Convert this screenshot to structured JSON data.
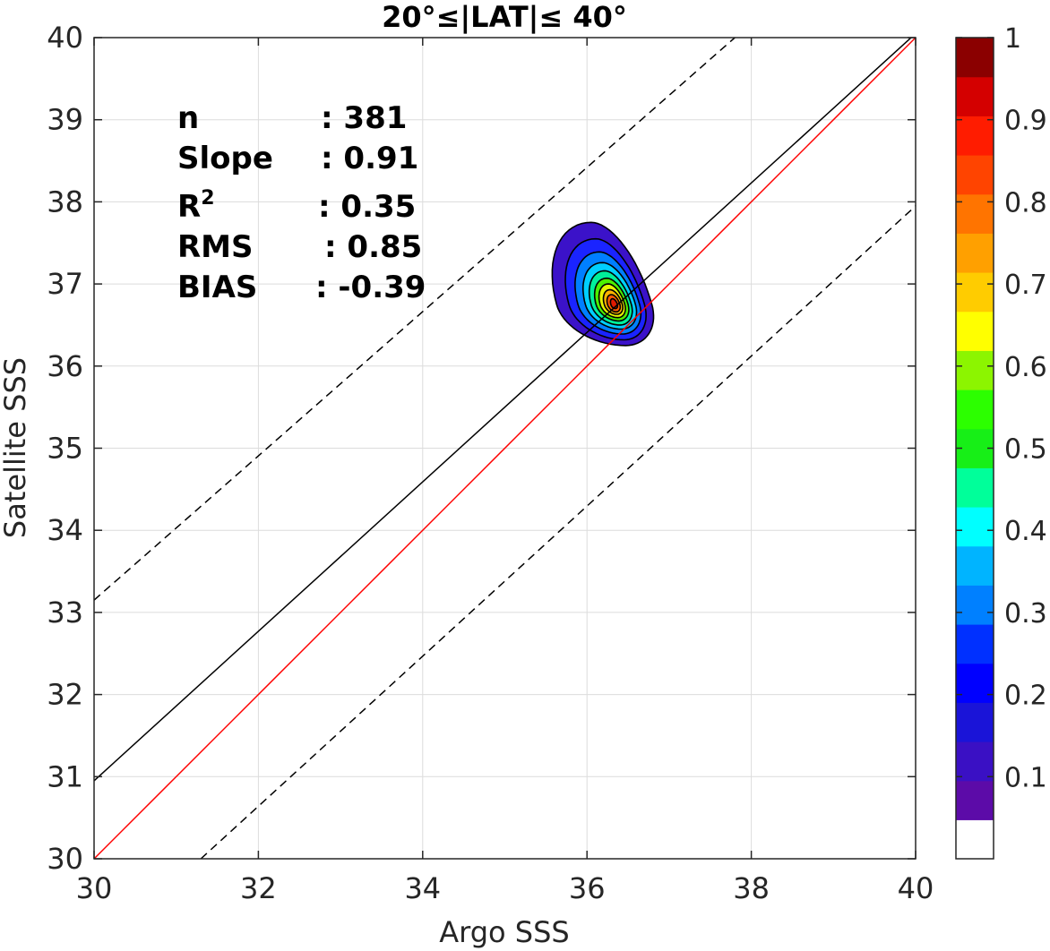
{
  "chart_data": {
    "type": "contour",
    "title": "20°≤|LAT|≤ 40°",
    "xlabel": "Argo SSS",
    "ylabel": "Satellite SSS",
    "xlim": [
      30,
      40
    ],
    "ylim": [
      30,
      40
    ],
    "xticks": [
      "30",
      "32",
      "34",
      "36",
      "38",
      "40"
    ],
    "yticks": [
      "30",
      "31",
      "32",
      "33",
      "34",
      "35",
      "36",
      "37",
      "38",
      "39",
      "40"
    ],
    "grid": true,
    "stats": [
      {
        "label": "n",
        "value": ": 381"
      },
      {
        "label": "Slope",
        "value": ": 0.91"
      },
      {
        "label": "R",
        "sup": "2",
        "value": ": 0.35"
      },
      {
        "label": "RMS",
        "value": ": 0.85"
      },
      {
        "label": "BIAS",
        "value": ": -0.39"
      }
    ],
    "density_peak": {
      "x": 36.33,
      "y": 36.75
    },
    "lines": [
      {
        "id": "one-to-one",
        "color": "#ff0000",
        "style": "solid",
        "x": [
          30,
          40
        ],
        "y": [
          30,
          40
        ]
      },
      {
        "id": "regression",
        "color": "#000000",
        "style": "solid",
        "x": [
          30,
          40
        ],
        "y": [
          30.95,
          40.05
        ]
      },
      {
        "id": "upper-bound",
        "color": "#000000",
        "style": "dashed",
        "x": [
          30,
          37.8
        ],
        "y": [
          33.15,
          40
        ]
      },
      {
        "id": "lower-bound",
        "color": "#000000",
        "style": "dashed",
        "x": [
          31.3,
          40
        ],
        "y": [
          30,
          37.95
        ]
      }
    ],
    "contour_levels": [
      {
        "level": 0.05,
        "color": "#3b12c9",
        "ext": {
          "l": 0.7,
          "r": 0.46,
          "u": 1.0,
          "d": 0.5
        }
      },
      {
        "level": 0.15,
        "color": "#1a24ff",
        "ext": {
          "l": 0.55,
          "r": 0.37,
          "u": 0.8,
          "d": 0.43
        }
      },
      {
        "level": 0.25,
        "color": "#007fff",
        "ext": {
          "l": 0.44,
          "r": 0.31,
          "u": 0.64,
          "d": 0.36
        }
      },
      {
        "level": 0.35,
        "color": "#00cfff",
        "ext": {
          "l": 0.35,
          "r": 0.26,
          "u": 0.51,
          "d": 0.3
        }
      },
      {
        "level": 0.45,
        "color": "#00f09a",
        "ext": {
          "l": 0.28,
          "r": 0.21,
          "u": 0.41,
          "d": 0.25
        }
      },
      {
        "level": 0.55,
        "color": "#4cf000",
        "ext": {
          "l": 0.22,
          "r": 0.17,
          "u": 0.32,
          "d": 0.2
        }
      },
      {
        "level": 0.65,
        "color": "#e6f500",
        "ext": {
          "l": 0.17,
          "r": 0.13,
          "u": 0.25,
          "d": 0.16
        }
      },
      {
        "level": 0.72,
        "color": "#ffb300",
        "ext": {
          "l": 0.12,
          "r": 0.1,
          "u": 0.18,
          "d": 0.12
        }
      },
      {
        "level": 0.82,
        "color": "#ff5a00",
        "ext": {
          "l": 0.08,
          "r": 0.07,
          "u": 0.12,
          "d": 0.09
        }
      },
      {
        "level": 0.9,
        "color": "#e01a00",
        "ext": {
          "l": 0.04,
          "r": 0.04,
          "u": 0.07,
          "d": 0.05
        }
      }
    ],
    "colorbar": {
      "colors": [
        "#ffffff",
        "#5c0ba8",
        "#3a10c4",
        "#1a14d8",
        "#0000ff",
        "#0030ff",
        "#0080ff",
        "#00b4ff",
        "#00ffff",
        "#00ff9a",
        "#17ef17",
        "#2cff00",
        "#8cf500",
        "#ffff00",
        "#ffcc00",
        "#ffa000",
        "#ff7400",
        "#ff4400",
        "#ff1c00",
        "#d40000",
        "#8b0000"
      ],
      "ticks": [
        {
          "value": 0.1,
          "label": "0.1"
        },
        {
          "value": 0.2,
          "label": "0.2"
        },
        {
          "value": 0.3,
          "label": "0.3"
        },
        {
          "value": 0.4,
          "label": "0.4"
        },
        {
          "value": 0.5,
          "label": "0.5"
        },
        {
          "value": 0.6,
          "label": "0.6"
        },
        {
          "value": 0.7,
          "label": "0.7"
        },
        {
          "value": 0.8,
          "label": "0.8"
        },
        {
          "value": 0.9,
          "label": "0.9"
        },
        {
          "value": 1.0,
          "label": "1"
        }
      ]
    }
  }
}
